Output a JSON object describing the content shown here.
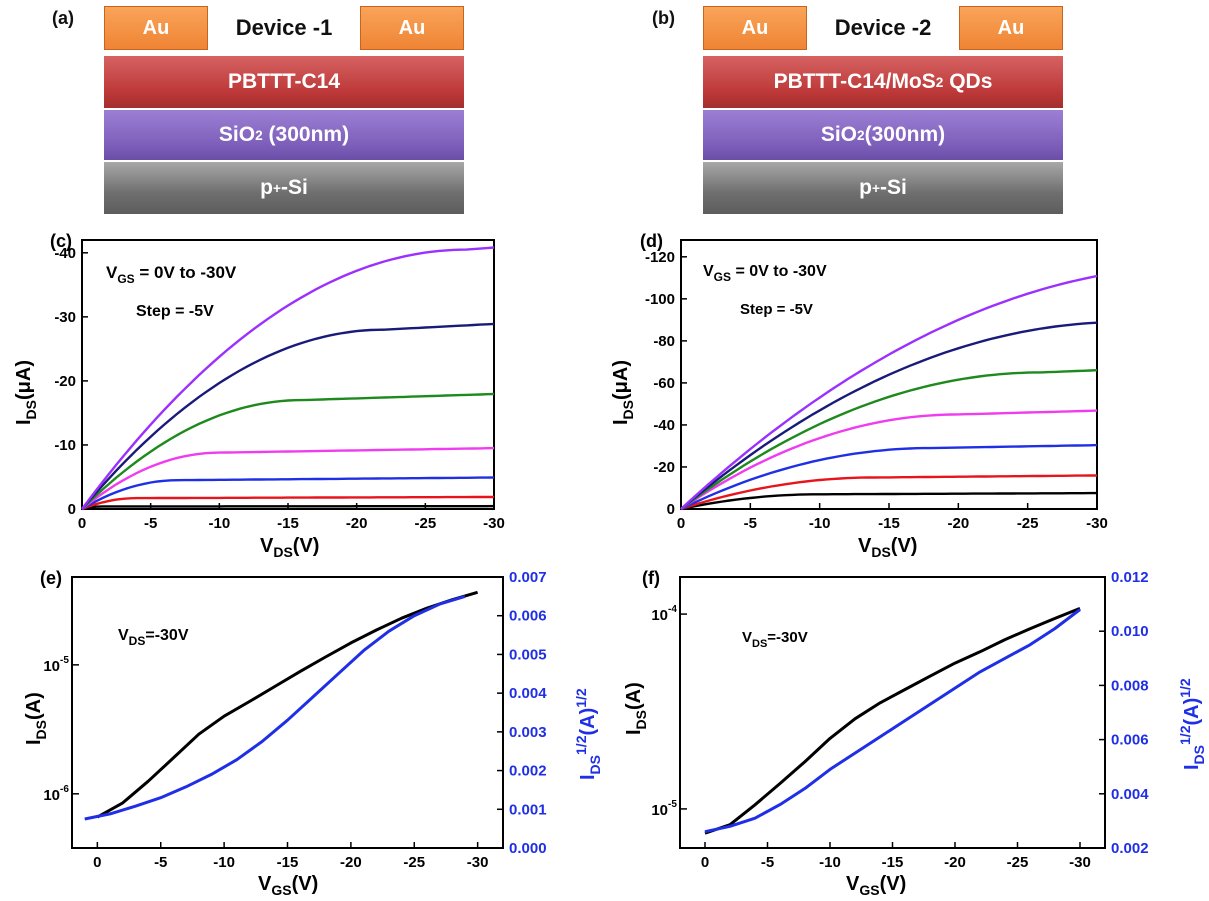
{
  "panels": {
    "a": {
      "label": "(a)",
      "title": "Device -1",
      "contact_left": "Au",
      "contact_right": "Au",
      "layer1": "PBTTT-C14",
      "layer2_main": "SiO",
      "layer2_sub": "2",
      "layer2_rest": " (300nm)",
      "layer3_main": "p",
      "layer3_sup": "+",
      "layer3_rest": "-Si"
    },
    "b": {
      "label": "(b)",
      "title": "Device -2",
      "contact_left": "Au",
      "contact_right": "Au",
      "layer1_main": "PBTTT-C14/MoS",
      "layer1_sub": "2",
      "layer1_rest": " QDs",
      "layer2_main": "SiO",
      "layer2_sub": "2",
      "layer2_rest": "(300nm)",
      "layer3_main": "p",
      "layer3_sup": "+",
      "layer3_rest": "-Si"
    },
    "c": {
      "label": "(c)",
      "ann1_main": "V",
      "ann1_sub": "GS",
      "ann1_rest": " = 0V to -30V",
      "ann2": "Step = -5V",
      "xlabel_main": "V",
      "xlabel_sub": "DS",
      "xlabel_rest": "(V)",
      "ylabel_main": "I",
      "ylabel_sub": "DS",
      "ylabel_rest": "(μA)"
    },
    "d": {
      "label": "(d)",
      "ann1_main": "V",
      "ann1_sub": "GS",
      "ann1_rest": " = 0V to -30V",
      "ann2": "Step = -5V",
      "xlabel_main": "V",
      "xlabel_sub": "DS",
      "xlabel_rest": "(V)",
      "ylabel_main": "I",
      "ylabel_sub": "DS",
      "ylabel_rest": "(μA)"
    },
    "e": {
      "label": "(e)",
      "ann_main": "V",
      "ann_sub": "DS",
      "ann_rest": "=-30V",
      "xlabel_main": "V",
      "xlabel_sub": "GS",
      "xlabel_rest": "(V)",
      "ylabel_main": "I",
      "ylabel_sub": "DS",
      "ylabel_rest": "(A)",
      "y2label_main": "I",
      "y2label_sub": "DS",
      "y2label_sup": "1/2",
      "y2label_rest": "(A)",
      "y2label_sup2": "1/2"
    },
    "f": {
      "label": "(f)",
      "ann_main": "V",
      "ann_sub": "DS",
      "ann_rest": "=-30V",
      "xlabel_main": "V",
      "xlabel_sub": "GS",
      "xlabel_rest": "(V)",
      "ylabel_main": "I",
      "ylabel_sub": "DS",
      "ylabel_rest": "(A)",
      "y2label_main": "I",
      "y2label_sub": "DS",
      "y2label_sup": "1/2",
      "y2label_rest": "(A)",
      "y2label_sup2": "1/2"
    }
  },
  "chart_data": [
    {
      "id": "c",
      "type": "line",
      "x_range": [
        0,
        -30
      ],
      "ylim": [
        0,
        -42
      ],
      "xticks": [
        "0",
        "-5",
        "-10",
        "-15",
        "-20",
        "-25",
        "-30"
      ],
      "xtick_values": [
        0,
        -5,
        -10,
        -15,
        -20,
        -25,
        -30
      ],
      "yticks": [
        "0",
        "-10",
        "-20",
        "-30",
        "-40"
      ],
      "ytick_values": [
        0,
        -10,
        -20,
        -30,
        -40
      ],
      "series": [
        {
          "color": "#000000",
          "vsat": 1.5,
          "isat": -0.4
        },
        {
          "color": "#e8141b",
          "vsat": 4,
          "isat": -1.7
        },
        {
          "color": "#1f2fe6",
          "vsat": 7,
          "isat": -4.5
        },
        {
          "color": "#f03cf0",
          "vsat": 10,
          "isat": -8.8
        },
        {
          "color": "#1e8a1e",
          "vsat": 16,
          "isat": -17
        },
        {
          "color": "#1a1a7a",
          "vsat": 22,
          "isat": -28
        },
        {
          "color": "#9b30ff",
          "vsat": 28,
          "isat": -40.5
        }
      ]
    },
    {
      "id": "d",
      "type": "line",
      "x_range": [
        0,
        -30
      ],
      "ylim": [
        0,
        -128
      ],
      "xticks": [
        "0",
        "-5",
        "-10",
        "-15",
        "-20",
        "-25",
        "-30"
      ],
      "xtick_values": [
        0,
        -5,
        -10,
        -15,
        -20,
        -25,
        -30
      ],
      "yticks": [
        "0",
        "-20",
        "-40",
        "-60",
        "-80",
        "-100",
        "-120"
      ],
      "ytick_values": [
        0,
        -20,
        -40,
        -60,
        -80,
        -100,
        -120
      ],
      "series": [
        {
          "color": "#000000",
          "vsat": 10,
          "isat": -7
        },
        {
          "color": "#e8141b",
          "vsat": 14,
          "isat": -15
        },
        {
          "color": "#1f2fe6",
          "vsat": 18,
          "isat": -29
        },
        {
          "color": "#f03cf0",
          "vsat": 20,
          "isat": -45
        },
        {
          "color": "#1e8a1e",
          "vsat": 26,
          "isat": -65
        },
        {
          "color": "#1a1a7a",
          "vsat": 32,
          "isat": -89
        },
        {
          "color": "#9b30ff",
          "vsat": 38,
          "isat": -116
        }
      ]
    },
    {
      "id": "e",
      "type": "line",
      "x_range": [
        2,
        -32
      ],
      "xticks": [
        "0",
        "-5",
        "-10",
        "-15",
        "-20",
        "-25",
        "-30"
      ],
      "xtick_values": [
        0,
        -5,
        -10,
        -15,
        -20,
        -25,
        -30
      ],
      "y_left": {
        "scale": "log",
        "range": [
          3.8e-07,
          4.8e-05
        ],
        "ticks": [
          "10",
          "10"
        ],
        "tick_exps": [
          "-6",
          "-5"
        ],
        "tick_values": [
          1e-06,
          1e-05
        ]
      },
      "y_right": {
        "scale": "linear",
        "range": [
          0,
          0.007
        ],
        "ticks": [
          "0.000",
          "0.001",
          "0.002",
          "0.003",
          "0.004",
          "0.005",
          "0.006",
          "0.007"
        ],
        "tick_values": [
          0,
          0.001,
          0.002,
          0.003,
          0.004,
          0.005,
          0.006,
          0.007
        ]
      },
      "series": [
        {
          "axis": "left",
          "color": "#000000",
          "x": [
            0,
            -2,
            -4,
            -6,
            -8,
            -10,
            -12,
            -14,
            -16,
            -18,
            -20,
            -22,
            -24,
            -26,
            -28,
            -30
          ],
          "y": [
            6.6e-07,
            8.5e-07,
            1.25e-06,
            1.9e-06,
            2.9e-06,
            4e-06,
            5.2e-06,
            6.8e-06,
            8.9e-06,
            1.15e-05,
            1.48e-05,
            1.86e-05,
            2.3e-05,
            2.75e-05,
            3.2e-05,
            3.65e-05
          ]
        },
        {
          "axis": "right",
          "color": "#1f2fe6",
          "x": [
            1,
            -1,
            -3,
            -5,
            -7,
            -9,
            -11,
            -13,
            -15,
            -17,
            -19,
            -21,
            -23,
            -25,
            -27,
            -29
          ],
          "y": [
            0.00075,
            0.00088,
            0.00108,
            0.0013,
            0.00158,
            0.0019,
            0.00228,
            0.00275,
            0.0033,
            0.0039,
            0.0045,
            0.0051,
            0.0056,
            0.006,
            0.0063,
            0.0065
          ]
        }
      ]
    },
    {
      "id": "f",
      "type": "line",
      "x_range": [
        2,
        -32
      ],
      "xticks": [
        "0",
        "-5",
        "-10",
        "-15",
        "-20",
        "-25",
        "-30"
      ],
      "xtick_values": [
        0,
        -5,
        -10,
        -15,
        -20,
        -25,
        -30
      ],
      "y_left": {
        "scale": "log",
        "range": [
          6.3e-06,
          0.000155
        ],
        "ticks": [
          "10",
          "10"
        ],
        "tick_exps": [
          "-5",
          "-4"
        ],
        "tick_values": [
          1e-05,
          0.0001
        ]
      },
      "y_right": {
        "scale": "linear",
        "range": [
          0.002,
          0.012
        ],
        "ticks": [
          "0.002",
          "0.004",
          "0.006",
          "0.008",
          "0.010",
          "0.012"
        ],
        "tick_values": [
          0.002,
          0.004,
          0.006,
          0.008,
          0.01,
          0.012
        ]
      },
      "series": [
        {
          "axis": "left",
          "color": "#000000",
          "x": [
            0,
            -2,
            -4,
            -6,
            -8,
            -10,
            -12,
            -14,
            -16,
            -18,
            -20,
            -22,
            -24,
            -26,
            -28,
            -30
          ],
          "y": [
            7.5e-06,
            8.3e-06,
            1.05e-05,
            1.35e-05,
            1.75e-05,
            2.3e-05,
            2.9e-05,
            3.5e-05,
            4.1e-05,
            4.8e-05,
            5.6e-05,
            6.4e-05,
            7.4e-05,
            8.4e-05,
            9.5e-05,
            0.000107
          ]
        },
        {
          "axis": "right",
          "color": "#1f2fe6",
          "x": [
            0,
            -2,
            -4,
            -6,
            -8,
            -10,
            -12,
            -14,
            -16,
            -18,
            -20,
            -22,
            -24,
            -26,
            -28,
            -30
          ],
          "y": [
            0.0026,
            0.0028,
            0.0031,
            0.0036,
            0.0042,
            0.0049,
            0.0055,
            0.0061,
            0.0067,
            0.0073,
            0.0079,
            0.0085,
            0.009,
            0.0095,
            0.0101,
            0.0108
          ]
        }
      ]
    }
  ]
}
